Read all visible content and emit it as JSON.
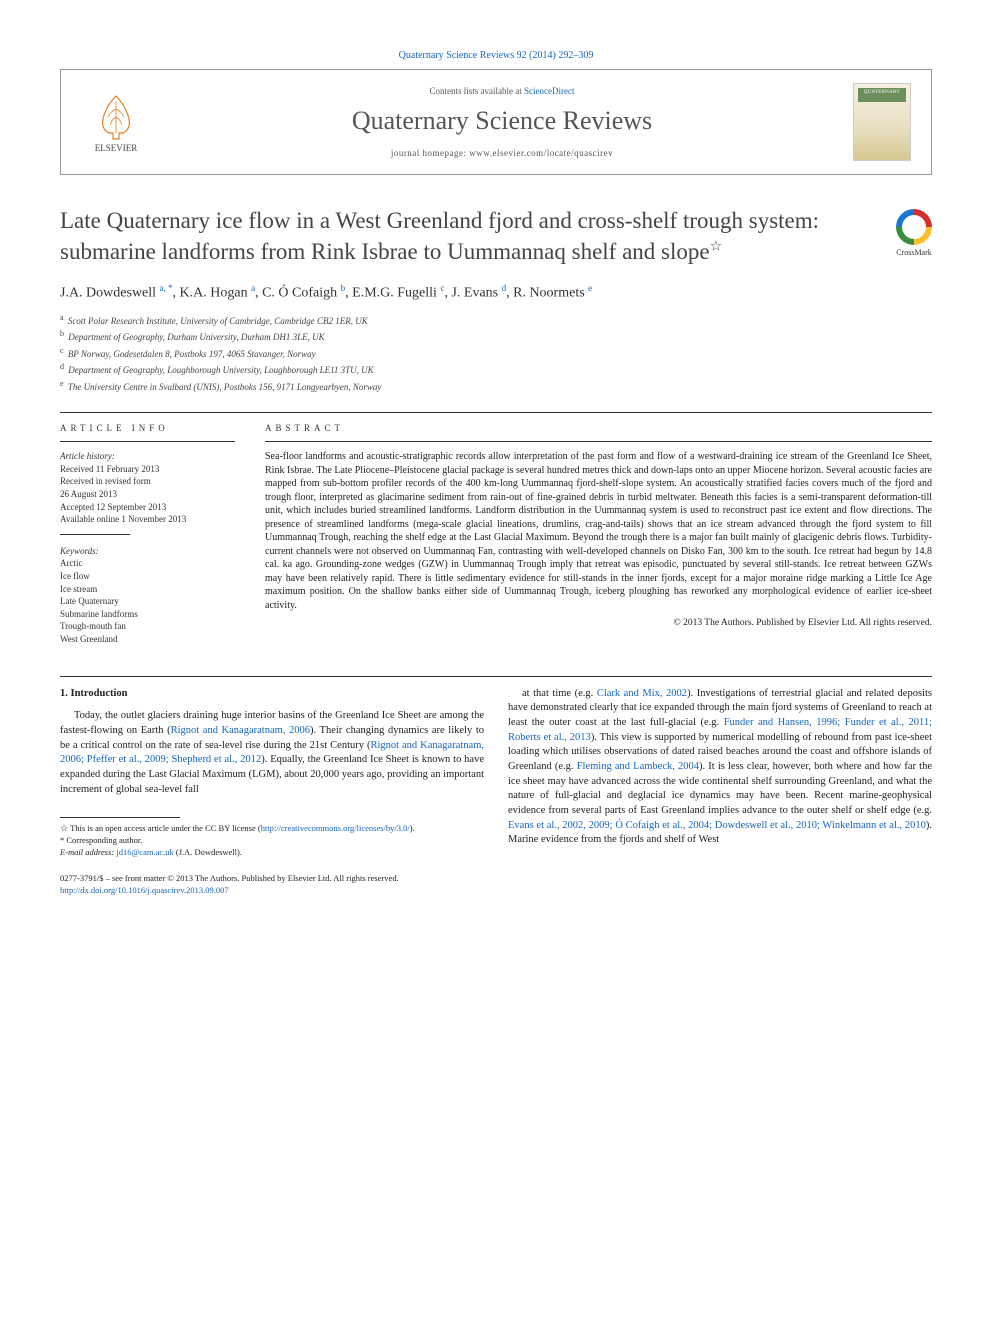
{
  "journal_ref": {
    "text": "Quaternary Science Reviews 92 (2014) 292–309",
    "link_text": "Quaternary Science Reviews 92 (2014) 292–309"
  },
  "header": {
    "contents_prefix": "Contents lists available at ",
    "contents_link": "ScienceDirect",
    "journal_name": "Quaternary Science Reviews",
    "homepage": "journal homepage: www.elsevier.com/locate/quascirev",
    "elsevier": "ELSEVIER"
  },
  "crossmark": "CrossMark",
  "title": "Late Quaternary ice flow in a West Greenland fjord and cross-shelf trough system: submarine landforms from Rink Isbrae to Uummannaq shelf and slope",
  "title_star": "☆",
  "authors_html": "J.A. Dowdeswell <sup>a, *</sup>, K.A. Hogan <sup>a</sup>, C. Ó Cofaigh <sup>b</sup>, E.M.G. Fugelli <sup>c</sup>, J. Evans <sup>d</sup>, R. Noormets <sup>e</sup>",
  "affiliations": [
    {
      "sup": "a",
      "text": "Scott Polar Research Institute, University of Cambridge, Cambridge CB2 1ER, UK"
    },
    {
      "sup": "b",
      "text": "Department of Geography, Durham University, Durham DH1 3LE, UK"
    },
    {
      "sup": "c",
      "text": "BP Norway, Godesetdalen 8, Postboks 197, 4065 Stavanger, Norway"
    },
    {
      "sup": "d",
      "text": "Department of Geography, Loughborough University, Loughborough LE11 3TU, UK"
    },
    {
      "sup": "e",
      "text": "The University Centre in Svalbard (UNIS), Postboks 156, 9171 Longyearbyen, Norway"
    }
  ],
  "article_info": {
    "heading": "ARTICLE INFO",
    "history_label": "Article history:",
    "history": [
      "Received 11 February 2013",
      "Received in revised form",
      "26 August 2013",
      "Accepted 12 September 2013",
      "Available online 1 November 2013"
    ],
    "keywords_label": "Keywords:",
    "keywords": [
      "Arctic",
      "Ice flow",
      "Ice stream",
      "Late Quaternary",
      "Submarine landforms",
      "Trough-mouth fan",
      "West Greenland"
    ]
  },
  "abstract": {
    "heading": "ABSTRACT",
    "text": "Sea-floor landforms and acoustic-stratigraphic records allow interpretation of the past form and flow of a westward-draining ice stream of the Greenland Ice Sheet, Rink Isbrae. The Late Pliocene–Pleistocene glacial package is several hundred metres thick and down-laps onto an upper Miocene horizon. Several acoustic facies are mapped from sub-bottom profiler records of the 400 km-long Uummannaq fjord-shelf-slope system. An acoustically stratified facies covers much of the fjord and trough floor, interpreted as glacimarine sediment from rain-out of fine-grained debris in turbid meltwater. Beneath this facies is a semi-transparent deformation-till unit, which includes buried streamlined landforms. Landform distribution in the Uummannaq system is used to reconstruct past ice extent and flow directions. The presence of streamlined landforms (mega-scale glacial lineations, drumlins, crag-and-tails) shows that an ice stream advanced through the fjord system to fill Uummannaq Trough, reaching the shelf edge at the Last Glacial Maximum. Beyond the trough there is a major fan built mainly of glacigenic debris flows. Turbidity-current channels were not observed on Uummannaq Fan, contrasting with well-developed channels on Disko Fan, 300 km to the south. Ice retreat had begun by 14.8 cal. ka ago. Grounding-zone wedges (GZW) in Uummannaq Trough imply that retreat was episodic, punctuated by several still-stands. Ice retreat between GZWs may have been relatively rapid. There is little sedimentary evidence for still-stands in the inner fjords, except for a major moraine ridge marking a Little Ice Age maximum position. On the shallow banks either side of Uummannaq Trough, iceberg ploughing has reworked any morphological evidence of earlier ice-sheet activity.",
    "copyright": "© 2013 The Authors. Published by Elsevier Ltd. All rights reserved."
  },
  "body": {
    "section_number": "1.",
    "section_title": "Introduction",
    "col1": "Today, the outlet glaciers draining huge interior basins of the Greenland Ice Sheet are among the fastest-flowing on Earth (<a href='#' data-name='ref-link' data-interactable='true'>Rignot and Kanagaratnam, 2006</a>). Their changing dynamics are likely to be a critical control on the rate of sea-level rise during the 21st Century (<a href='#' data-name='ref-link' data-interactable='true'>Rignot and Kanagaratnam, 2006; Pfeffer et al., 2009; Shepherd et al., 2012</a>). Equally, the Greenland Ice Sheet is known to have expanded during the Last Glacial Maximum (LGM), about 20,000 years ago, providing an important increment of global sea-level fall",
    "col2": "at that time (e.g. <a href='#' data-name='ref-link' data-interactable='true'>Clark and Mix, 2002</a>). Investigations of terrestrial glacial and related deposits have demonstrated clearly that ice expanded through the main fjord systems of Greenland to reach at least the outer coast at the last full-glacial (e.g. <a href='#' data-name='ref-link' data-interactable='true'>Funder and Hansen, 1996; Funder et al., 2011; Roberts et al., 2013</a>). This view is supported by numerical modelling of rebound from past ice-sheet loading which utilises observations of dated raised beaches around the coast and offshore islands of Greenland (e.g. <a href='#' data-name='ref-link' data-interactable='true'>Fleming and Lambeck, 2004</a>). It is less clear, however, both where and how far the ice sheet may have advanced across the wide continental shelf surrounding Greenland, and what the nature of full-glacial and deglacial ice dynamics may have been. Recent marine-geophysical evidence from several parts of East Greenland implies advance to the outer shelf or shelf edge (e.g. <a href='#' data-name='ref-link' data-interactable='true'>Evans et al., 2002, 2009; Ó Cofaigh et al., 2004; Dowdeswell et al., 2010; Winkelmann et al., 2010</a>). Marine evidence from the fjords and shelf of West"
  },
  "footnotes": {
    "open_access": "This is an open access article under the CC BY license (",
    "open_access_link": "http://creativecommons.org/licenses/by/3.0/",
    "open_access_close": ").",
    "corresponding": "Corresponding author.",
    "email_label": "E-mail address:",
    "email": "jd16@cam.ac.uk",
    "email_suffix": "(J.A. Dowdeswell)."
  },
  "footer": {
    "issn": "0277-3791/$ – see front matter © 2013 The Authors. Published by Elsevier Ltd. All rights reserved.",
    "doi": "http://dx.doi.org/10.1016/j.quascirev.2013.09.007"
  },
  "colors": {
    "link": "#1565c0",
    "text": "#222222",
    "muted": "#555555",
    "rule": "#333333"
  }
}
